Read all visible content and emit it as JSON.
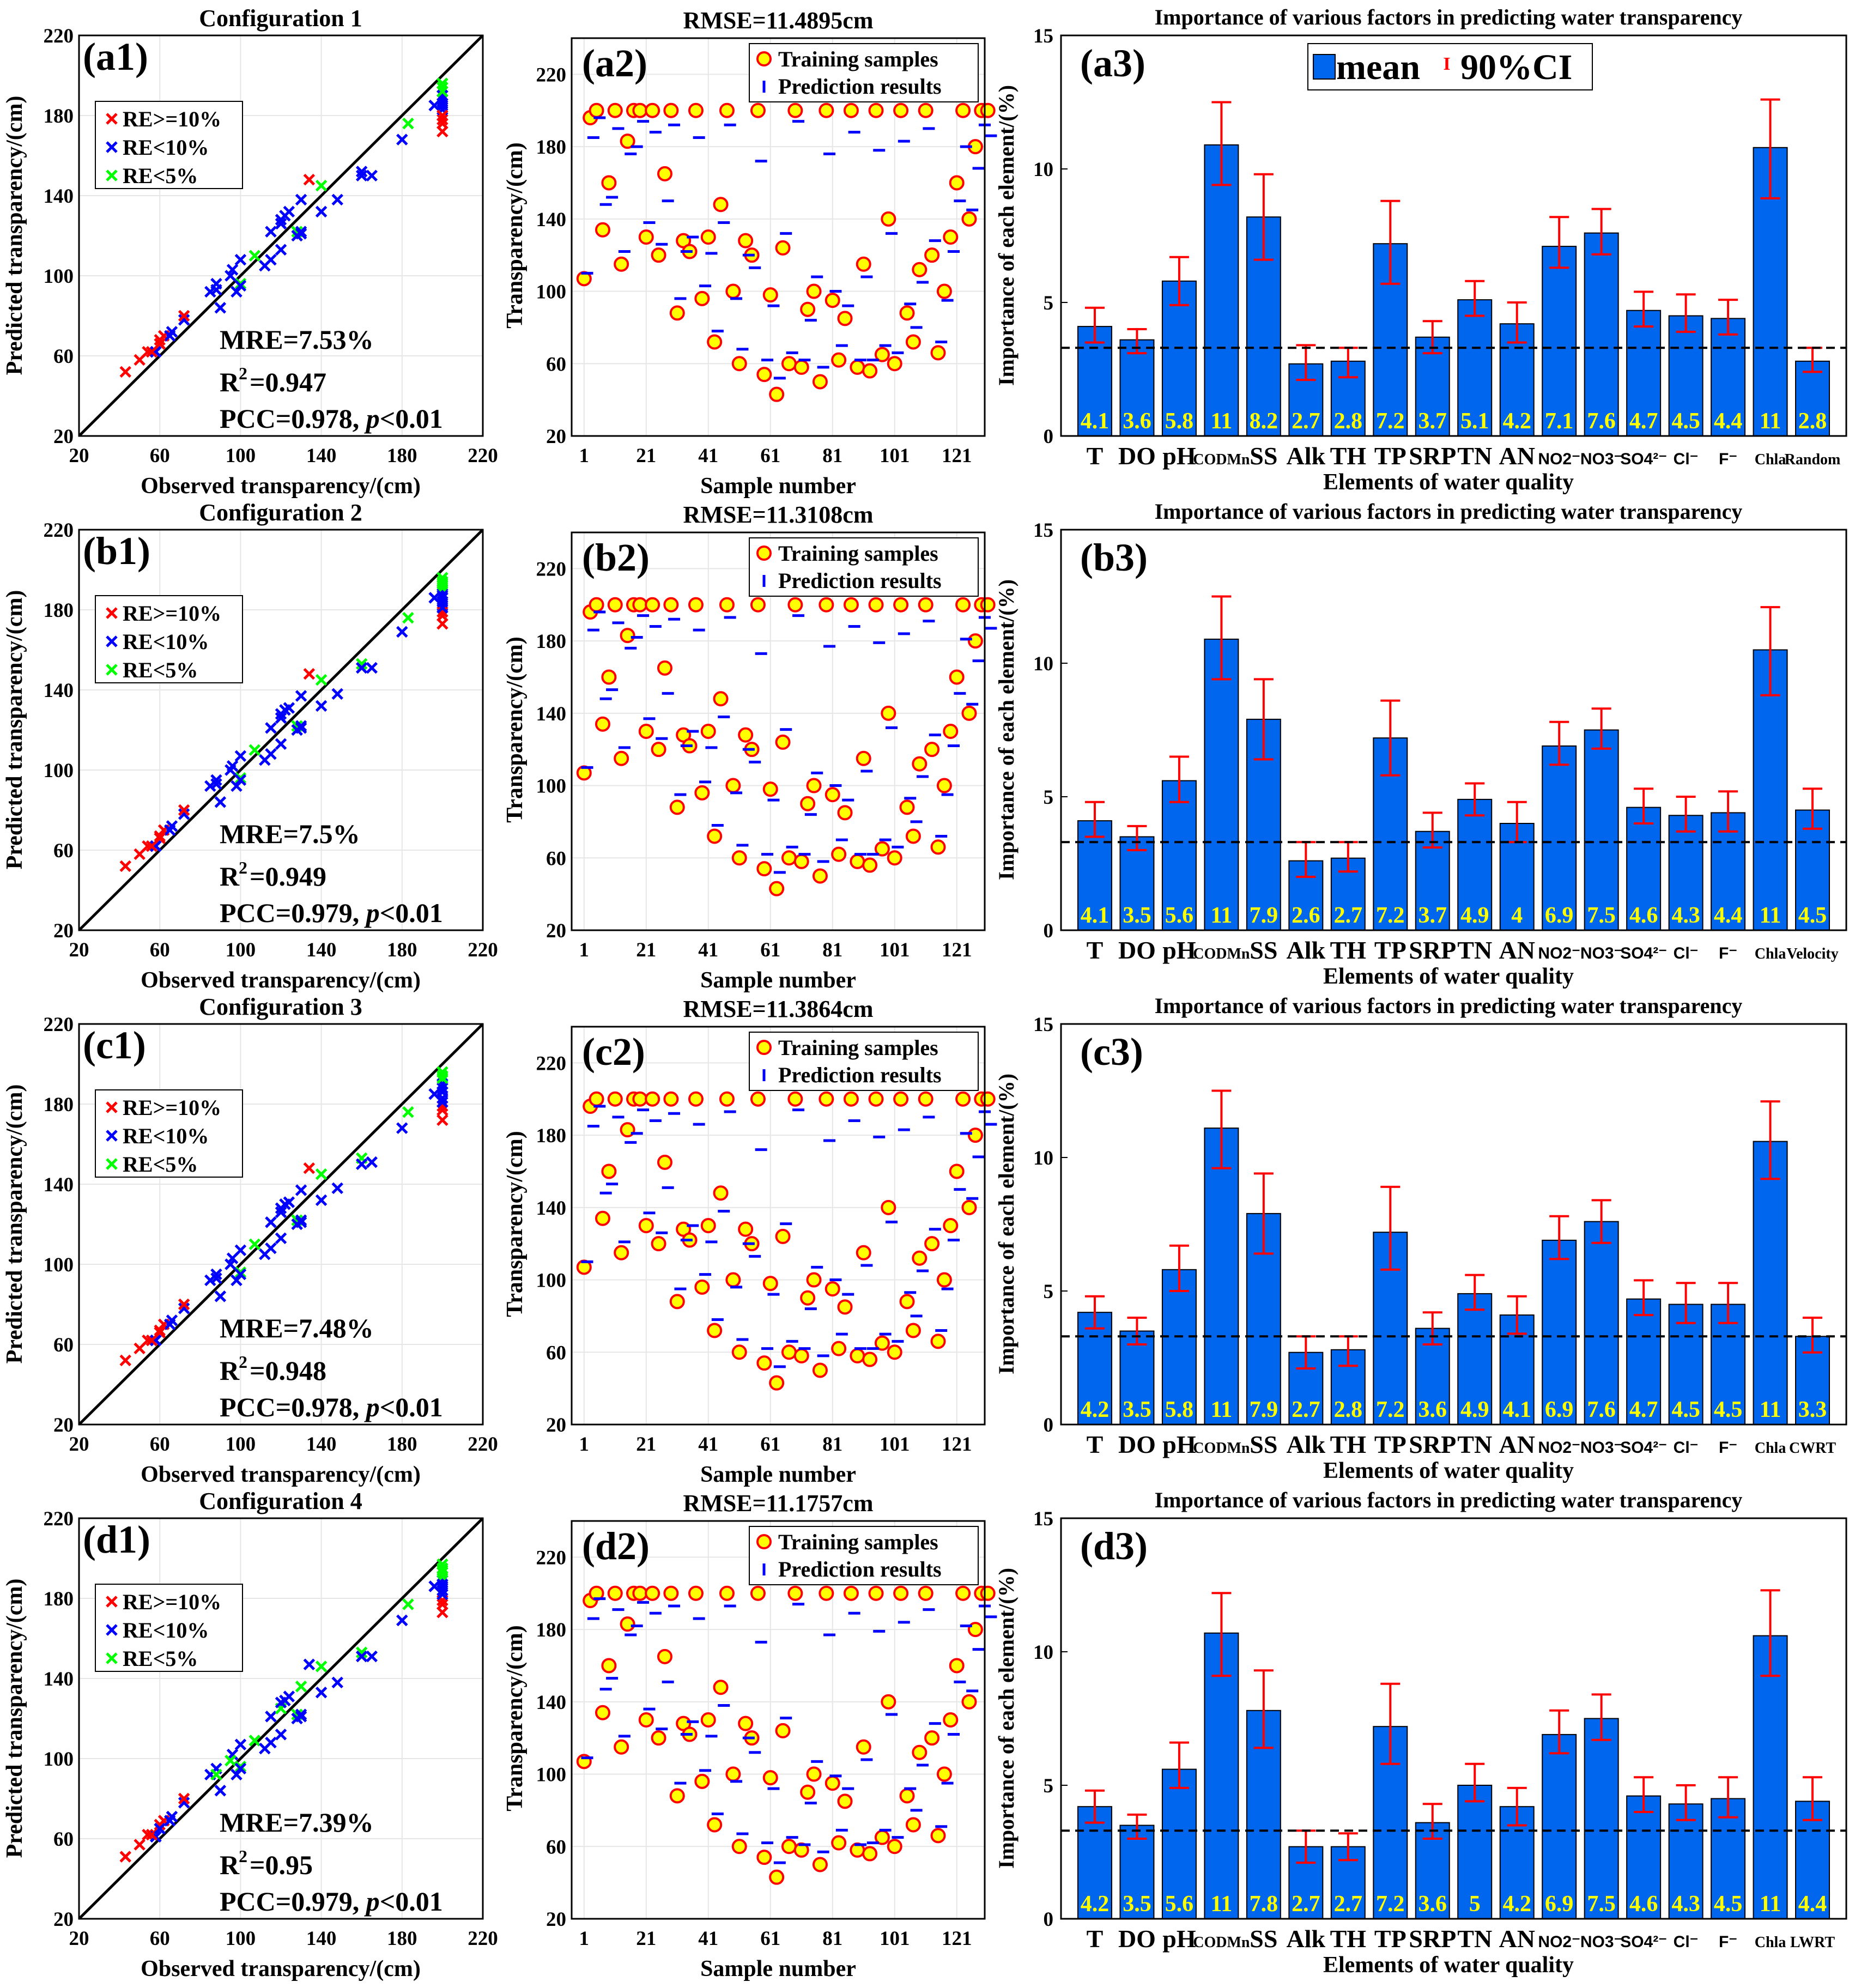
{
  "chart_data": {
    "type": "composite",
    "common": {
      "scatter": {
        "type": "scatter",
        "xlabel": "Observed transparency/(cm)",
        "ylabel": "Predicted transparency/(cm)",
        "xlim": [
          20,
          220
        ],
        "ylim": [
          20,
          220
        ],
        "ticks": [
          "20",
          "60",
          "100",
          "140",
          "180",
          "220"
        ],
        "legend": [
          "RE>=10%",
          "RE<10%",
          "RE<5%"
        ],
        "legend_colors": [
          "#ff0000",
          "#0000ff",
          "#00ff00"
        ],
        "marker": "×",
        "legend_position": "top-left"
      },
      "series": {
        "type": "scatter",
        "xlabel": "Sample number",
        "ylabel": "Transparency/(cm)",
        "xlim": [
          -3,
          130
        ],
        "ylim": [
          20,
          240
        ],
        "xticks": [
          "1",
          "21",
          "41",
          "61",
          "81",
          "101",
          "121"
        ],
        "yticks": [
          "20",
          "60",
          "100",
          "140",
          "180",
          "220"
        ],
        "legend": [
          "Training samples",
          "Prediction results"
        ],
        "legend_position": "top-right",
        "sample_step": 2,
        "observed": [
          107,
          196,
          200,
          134,
          160,
          200,
          115,
          183,
          200,
          200,
          130,
          200,
          120,
          165,
          200,
          88,
          128,
          122,
          200,
          96,
          130,
          72,
          148,
          200,
          100,
          60,
          128,
          120,
          200,
          54,
          98,
          43,
          124,
          60,
          200,
          58,
          90,
          100,
          50,
          200,
          95,
          62,
          85,
          200,
          58,
          115,
          56,
          200,
          65,
          140,
          60,
          200,
          88,
          72,
          112,
          200,
          120,
          66,
          100,
          130,
          160,
          200,
          140,
          180,
          200,
          200
        ]
      },
      "importance": {
        "type": "bar",
        "xlabel": "Elements of water quality",
        "ylabel": "Importance of each element/(%)",
        "ylim": [
          0,
          15
        ],
        "yticks": [
          "0",
          "5",
          "10",
          "15"
        ],
        "legend": [
          "mean",
          "90%CI"
        ],
        "legend_marker_ci": "I",
        "legend_position": "top-center",
        "bar_color": "#0066ee",
        "ci_color": "#ff0000",
        "label_color": "#ffff00",
        "title": "Importance of various factors in predicting water transparency"
      }
    },
    "panels": [
      {
        "scatter": {
          "title": "Configuration 1",
          "label": "(a1)",
          "mre": "MRE=7.53%",
          "r": "R",
          "sup": "2",
          "r2": "=0.947",
          "pcc": "PCC=0.978, ",
          "p": "p",
          "pval": "<0.01"
        },
        "series": {
          "title": "RMSE=11.4895cm",
          "label": "(a2)",
          "predicted": [
            110,
            185,
            196,
            148,
            152,
            190,
            122,
            176,
            180,
            194,
            138,
            188,
            126,
            150,
            192,
            96,
            122,
            130,
            185,
            103,
            121,
            78,
            138,
            192,
            96,
            68,
            120,
            113,
            172,
            62,
            92,
            52,
            132,
            66,
            194,
            62,
            84,
            108,
            58,
            176,
            100,
            70,
            92,
            188,
            62,
            108,
            62,
            178,
            70,
            132,
            66,
            183,
            93,
            80,
            105,
            190,
            128,
            72,
            95,
            122,
            150,
            180,
            145,
            168,
            192,
            186
          ]
        },
        "importance": {
          "label": "(a3)",
          "categories": [
            "T",
            "DO",
            "pH",
            "CODMn",
            "SS",
            "Alk",
            "TH",
            "TP",
            "SRP",
            "TN",
            "AN",
            "NO2⁻",
            "NO3⁻",
            "SO4²⁻",
            "Cl⁻",
            "F⁻",
            "Chla",
            "Random"
          ],
          "values": [
            4.1,
            3.6,
            5.8,
            10.9,
            8.2,
            2.7,
            2.8,
            7.2,
            3.7,
            5.1,
            4.2,
            7.1,
            7.6,
            4.7,
            4.5,
            4.4,
            10.8,
            2.8
          ],
          "labels": [
            "4.1",
            "3.6",
            "5.8",
            "11",
            "8.2",
            "2.7",
            "2.8",
            "7.2",
            "3.7",
            "5.1",
            "4.2",
            "7.1",
            "7.6",
            "4.7",
            "4.5",
            "4.4",
            "11",
            "2.8"
          ],
          "ci_low": [
            3.5,
            3.1,
            4.9,
            9.4,
            6.6,
            2.1,
            2.2,
            5.7,
            3.1,
            4.5,
            3.5,
            6.3,
            6.8,
            4.1,
            3.9,
            3.8,
            8.9,
            2.4
          ],
          "ci_high": [
            4.8,
            4.0,
            6.7,
            12.5,
            9.8,
            3.4,
            3.3,
            8.8,
            4.3,
            5.8,
            5.0,
            8.2,
            8.5,
            5.4,
            5.3,
            5.1,
            12.6,
            3.3
          ],
          "baseline": 3.3
        }
      },
      {
        "scatter": {
          "title": "Configuration 2",
          "label": "(b1)",
          "mre": "MRE=7.5%",
          "r": "R",
          "sup": "2",
          "r2": "=0.949",
          "pcc": "PCC=0.979, ",
          "p": "p",
          "pval": "<0.01"
        },
        "series": {
          "title": "RMSE=11.3108cm",
          "label": "(b2)",
          "predicted": [
            110,
            186,
            196,
            148,
            153,
            190,
            121,
            176,
            182,
            194,
            137,
            188,
            126,
            151,
            192,
            95,
            122,
            130,
            186,
            102,
            121,
            78,
            138,
            193,
            96,
            67,
            120,
            113,
            173,
            62,
            92,
            52,
            131,
            66,
            194,
            62,
            84,
            107,
            58,
            177,
            100,
            70,
            92,
            188,
            62,
            108,
            62,
            179,
            70,
            132,
            66,
            184,
            93,
            80,
            105,
            191,
            128,
            72,
            95,
            122,
            151,
            181,
            145,
            169,
            193,
            187
          ]
        },
        "importance": {
          "label": "(b3)",
          "categories": [
            "T",
            "DO",
            "pH",
            "CODMn",
            "SS",
            "Alk",
            "TH",
            "TP",
            "SRP",
            "TN",
            "AN",
            "NO2⁻",
            "NO3⁻",
            "SO4²⁻",
            "Cl⁻",
            "F⁻",
            "Chla",
            "Velocity"
          ],
          "values": [
            4.1,
            3.5,
            5.6,
            10.9,
            7.9,
            2.6,
            2.7,
            7.2,
            3.7,
            4.9,
            4.0,
            6.9,
            7.5,
            4.6,
            4.3,
            4.4,
            10.5,
            4.5
          ],
          "labels": [
            "4.1",
            "3.5",
            "5.6",
            "11",
            "7.9",
            "2.6",
            "2.7",
            "7.2",
            "3.7",
            "4.9",
            "4",
            "6.9",
            "7.5",
            "4.6",
            "4.3",
            "4.4",
            "11",
            "4.5"
          ],
          "ci_low": [
            3.5,
            3.0,
            4.8,
            9.4,
            6.4,
            2.0,
            2.2,
            5.8,
            3.1,
            4.3,
            3.3,
            6.2,
            6.8,
            4.0,
            3.7,
            3.7,
            8.8,
            3.8
          ],
          "ci_high": [
            4.8,
            3.9,
            6.5,
            12.5,
            9.4,
            3.3,
            3.3,
            8.6,
            4.4,
            5.5,
            4.8,
            7.8,
            8.3,
            5.3,
            5.0,
            5.2,
            12.1,
            5.3
          ],
          "baseline": 3.3
        }
      },
      {
        "scatter": {
          "title": "Configuration 3",
          "label": "(c1)",
          "mre": "MRE=7.48%",
          "r": "R",
          "sup": "2",
          "r2": "=0.948",
          "pcc": "PCC=0.978, ",
          "p": "p",
          "pval": "<0.01"
        },
        "series": {
          "title": "RMSE=11.3864cm",
          "label": "(c2)",
          "predicted": [
            110,
            185,
            196,
            148,
            153,
            190,
            121,
            176,
            181,
            194,
            137,
            188,
            126,
            151,
            192,
            95,
            122,
            130,
            186,
            103,
            121,
            78,
            138,
            193,
            96,
            67,
            120,
            113,
            172,
            62,
            92,
            52,
            131,
            66,
            194,
            62,
            84,
            107,
            58,
            177,
            100,
            70,
            92,
            188,
            62,
            108,
            62,
            179,
            70,
            132,
            66,
            183,
            93,
            80,
            105,
            190,
            128,
            72,
            95,
            122,
            150,
            181,
            145,
            168,
            193,
            186
          ]
        },
        "importance": {
          "label": "(c3)",
          "categories": [
            "T",
            "DO",
            "pH",
            "CODMn",
            "SS",
            "Alk",
            "TH",
            "TP",
            "SRP",
            "TN",
            "AN",
            "NO2⁻",
            "NO3⁻",
            "SO4²⁻",
            "Cl⁻",
            "F⁻",
            "Chla",
            "CWRT"
          ],
          "values": [
            4.2,
            3.5,
            5.8,
            11.1,
            7.9,
            2.7,
            2.8,
            7.2,
            3.6,
            4.9,
            4.1,
            6.9,
            7.6,
            4.7,
            4.5,
            4.5,
            10.6,
            3.3
          ],
          "labels": [
            "4.2",
            "3.5",
            "5.8",
            "11",
            "7.9",
            "2.7",
            "2.8",
            "7.2",
            "3.6",
            "4.9",
            "4.1",
            "6.9",
            "7.6",
            "4.7",
            "4.5",
            "4.5",
            "11",
            "3.3"
          ],
          "ci_low": [
            3.6,
            3.0,
            5.0,
            9.6,
            6.4,
            2.1,
            2.2,
            5.8,
            3.0,
            4.3,
            3.4,
            6.2,
            6.8,
            4.1,
            3.8,
            3.8,
            9.2,
            2.7
          ],
          "ci_high": [
            4.8,
            4.0,
            6.7,
            12.5,
            9.4,
            3.3,
            3.3,
            8.9,
            4.2,
            5.6,
            4.8,
            7.8,
            8.4,
            5.4,
            5.3,
            5.3,
            12.1,
            4.0
          ],
          "baseline": 3.3
        }
      },
      {
        "scatter": {
          "title": "Configuration 4",
          "label": "(d1)",
          "mre": "MRE=7.39%",
          "r": "R",
          "sup": "2",
          "r2": "=0.95",
          "pcc": "PCC=0.979, ",
          "p": "p",
          "pval": "<0.01"
        },
        "series": {
          "title": "RMSE=11.1757cm",
          "label": "(d2)",
          "predicted": [
            109,
            186,
            197,
            147,
            153,
            191,
            121,
            177,
            182,
            195,
            136,
            189,
            125,
            151,
            193,
            95,
            122,
            129,
            186,
            102,
            121,
            78,
            138,
            193,
            96,
            67,
            120,
            112,
            173,
            62,
            92,
            51,
            131,
            65,
            194,
            61,
            84,
            107,
            57,
            177,
            99,
            69,
            92,
            189,
            61,
            108,
            62,
            179,
            69,
            133,
            65,
            184,
            92,
            80,
            105,
            191,
            128,
            71,
            95,
            122,
            151,
            182,
            146,
            169,
            193,
            187
          ]
        },
        "importance": {
          "label": "(d3)",
          "categories": [
            "T",
            "DO",
            "pH",
            "CODMn",
            "SS",
            "Alk",
            "TH",
            "TP",
            "SRP",
            "TN",
            "AN",
            "NO2⁻",
            "NO3⁻",
            "SO4²⁻",
            "Cl⁻",
            "F⁻",
            "Chla",
            "LWRT"
          ],
          "values": [
            4.2,
            3.5,
            5.6,
            10.7,
            7.8,
            2.7,
            2.7,
            7.2,
            3.6,
            5.0,
            4.2,
            6.9,
            7.5,
            4.6,
            4.3,
            4.5,
            10.6,
            4.4
          ],
          "labels": [
            "4.2",
            "3.5",
            "5.6",
            "11",
            "7.8",
            "2.7",
            "2.7",
            "7.2",
            "3.6",
            "5",
            "4.2",
            "6.9",
            "7.5",
            "4.6",
            "4.3",
            "4.5",
            "11",
            "4.4"
          ],
          "ci_low": [
            3.6,
            3.0,
            4.9,
            9.1,
            6.4,
            2.1,
            2.2,
            5.8,
            3.0,
            4.4,
            3.5,
            6.2,
            6.7,
            4.0,
            3.7,
            3.8,
            9.1,
            3.7
          ],
          "ci_high": [
            4.8,
            3.9,
            6.6,
            12.2,
            9.3,
            3.3,
            3.2,
            8.8,
            4.3,
            5.8,
            4.9,
            7.8,
            8.4,
            5.3,
            5.0,
            5.3,
            12.3,
            5.3
          ],
          "baseline": 3.3
        }
      }
    ]
  }
}
